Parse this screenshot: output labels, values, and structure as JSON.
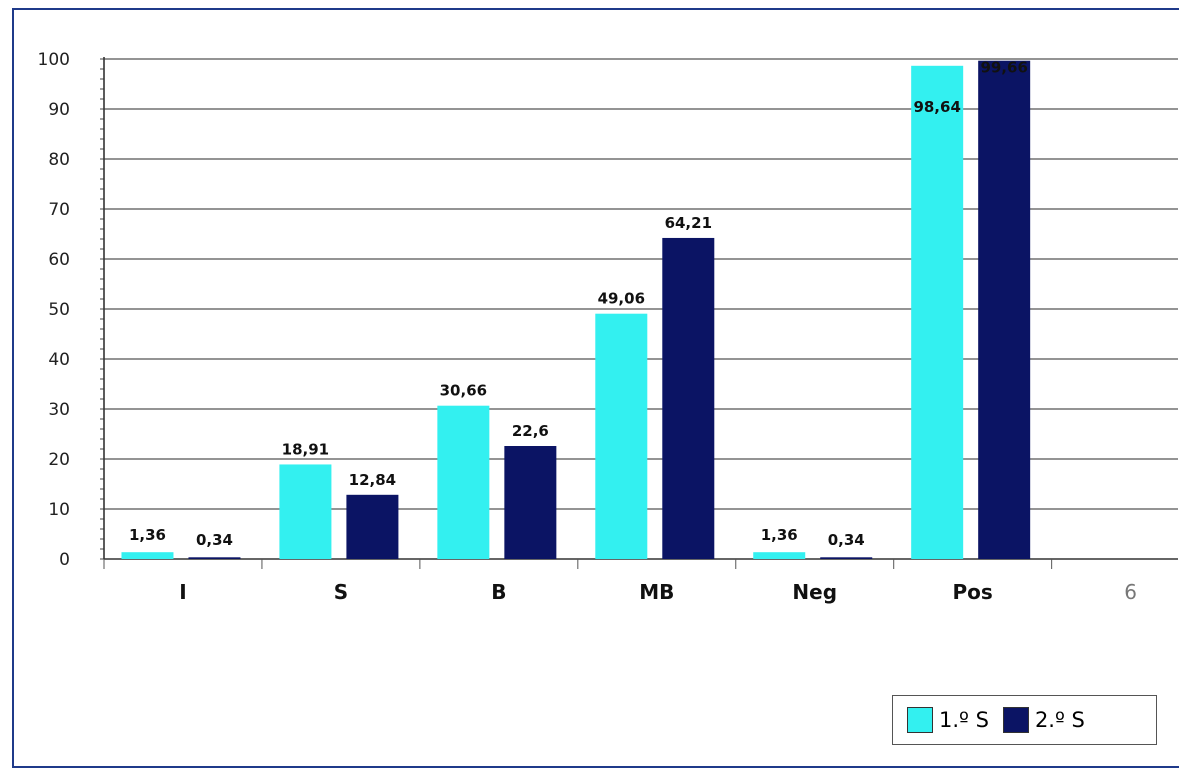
{
  "chart_data": {
    "type": "bar",
    "categories": [
      "I",
      "S",
      "B",
      "MB",
      "Neg",
      "Pos",
      "6"
    ],
    "series": [
      {
        "name": "1.º S",
        "color": "#33f0f0",
        "values": [
          1.36,
          18.91,
          30.66,
          49.06,
          1.36,
          98.64,
          null
        ],
        "labels": [
          "1,36",
          "18,91",
          "30,66",
          "49,06",
          "1,36",
          "98,64",
          ""
        ]
      },
      {
        "name": "2.º S",
        "color": "#0b1464",
        "values": [
          0.34,
          12.84,
          22.6,
          64.21,
          0.34,
          99.66,
          null
        ],
        "labels": [
          "0,34",
          "12,84",
          "22,6",
          "64,21",
          "0,34",
          "99,66",
          ""
        ]
      }
    ],
    "ylim": [
      0,
      100
    ],
    "yticks": [
      0,
      10,
      20,
      30,
      40,
      50,
      60,
      70,
      80,
      90,
      100
    ],
    "grid": true,
    "legend": "bottom-right",
    "title": "",
    "xlabel": "",
    "ylabel": ""
  }
}
